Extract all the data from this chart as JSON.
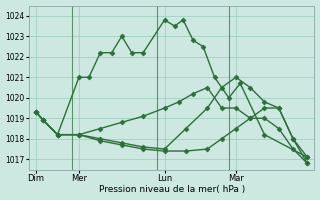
{
  "bg_color": "#cce8e0",
  "grid_color": "#99ccbb",
  "line_color": "#2d6e3a",
  "marker": "D",
  "markersize": 2.5,
  "linewidth": 1.0,
  "xlabel": "Pression niveau de la mer( hPa )",
  "ylim": [
    1016.5,
    1024.5
  ],
  "yticks": [
    1017,
    1018,
    1019,
    1020,
    1021,
    1022,
    1023,
    1024
  ],
  "day_labels": [
    "Dim",
    "Mer",
    "Lun",
    "Mar"
  ],
  "day_positions": [
    0.5,
    3.5,
    9.5,
    14.5
  ],
  "vline_positions": [
    3,
    9,
    14
  ],
  "xlim": [
    0,
    20
  ],
  "series1_x": [
    0.5,
    1.0,
    2.0,
    3.5,
    4.2,
    5.0,
    5.8,
    6.5,
    7.2,
    8.0,
    9.5,
    10.2,
    10.8,
    11.5,
    12.2,
    13.0,
    14.0,
    14.8,
    16.5,
    19.5
  ],
  "series1_y": [
    1019.3,
    1018.9,
    1018.2,
    1021.0,
    1021.0,
    1022.2,
    1022.2,
    1023.0,
    1022.2,
    1022.2,
    1023.8,
    1023.5,
    1023.8,
    1022.8,
    1022.5,
    1021.0,
    1020.0,
    1020.7,
    1018.2,
    1017.1
  ],
  "series2_x": [
    0.5,
    1.0,
    2.0,
    3.5,
    5.0,
    6.5,
    8.0,
    9.5,
    10.5,
    11.5,
    12.5,
    13.5,
    14.5,
    15.5,
    16.5,
    17.5,
    18.5,
    19.5
  ],
  "series2_y": [
    1019.3,
    1018.9,
    1018.2,
    1018.2,
    1018.5,
    1018.8,
    1019.1,
    1019.5,
    1019.8,
    1020.2,
    1020.5,
    1019.5,
    1019.5,
    1019.0,
    1019.5,
    1019.5,
    1018.0,
    1017.1
  ],
  "series3_x": [
    0.5,
    1.0,
    2.0,
    3.5,
    5.0,
    6.5,
    8.0,
    9.5,
    11.0,
    12.5,
    13.5,
    14.5,
    15.5,
    16.5,
    17.5,
    18.5,
    19.5
  ],
  "series3_y": [
    1019.3,
    1018.9,
    1018.2,
    1018.2,
    1018.0,
    1017.8,
    1017.6,
    1017.5,
    1018.5,
    1019.5,
    1020.5,
    1021.0,
    1020.5,
    1019.8,
    1019.5,
    1018.0,
    1016.8
  ],
  "series4_x": [
    0.5,
    1.0,
    2.0,
    3.5,
    5.0,
    6.5,
    8.0,
    9.5,
    11.0,
    12.5,
    13.5,
    14.5,
    15.5,
    16.5,
    17.5,
    18.5,
    19.5
  ],
  "series4_y": [
    1019.3,
    1018.9,
    1018.2,
    1018.2,
    1017.9,
    1017.7,
    1017.5,
    1017.4,
    1017.4,
    1017.5,
    1018.0,
    1018.5,
    1019.0,
    1019.0,
    1018.5,
    1017.5,
    1016.8
  ]
}
